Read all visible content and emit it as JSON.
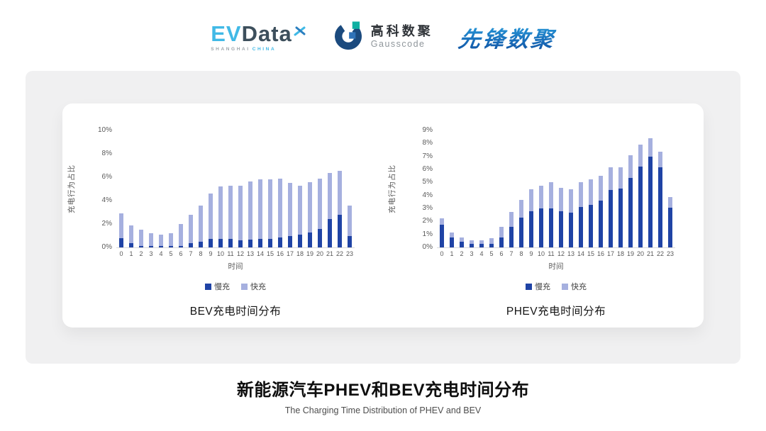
{
  "header": {
    "evdata": {
      "ev": "EV",
      "data": "Data",
      "sub_left": "SHANGHAI",
      "sub_right": "CHINA"
    },
    "gausscode": {
      "cn": "高科数聚",
      "en": "Gausscode"
    },
    "pioneer": {
      "text": "先锋数聚"
    }
  },
  "charts": [
    {
      "title": "BEV充电时间分布",
      "ylabel": "充电行为占比",
      "xlabel": "时间",
      "legend": [
        "慢充",
        "快充"
      ]
    },
    {
      "title": "PHEV充电时间分布",
      "ylabel": "充电行为占比",
      "xlabel": "时间",
      "legend": [
        "慢充",
        "快充"
      ]
    }
  ],
  "footer": {
    "title": "新能源汽车PHEV和BEV充电时间分布",
    "subtitle": "The Charging Time Distribution of PHEV and BEV"
  },
  "colors": {
    "slow": "#1F43A5",
    "fast": "#A6B0DF",
    "axis_text": "#595959",
    "baseline": "#D9D9D9",
    "brand_cyan": "#41B9E6",
    "brand_navy": "#3D4F5C",
    "pioneer_blue": "#1767B5"
  },
  "chart_data": [
    {
      "type": "bar",
      "stacked": true,
      "title": "BEV充电时间分布",
      "xlabel": "时间",
      "ylabel": "充电行为占比",
      "categories": [
        0,
        1,
        2,
        3,
        4,
        5,
        6,
        7,
        8,
        9,
        10,
        11,
        12,
        13,
        14,
        15,
        16,
        17,
        18,
        19,
        20,
        21,
        22,
        23
      ],
      "series": [
        {
          "name": "慢充",
          "values": [
            0.8,
            0.35,
            0.15,
            0.1,
            0.1,
            0.1,
            0.15,
            0.35,
            0.5,
            0.7,
            0.7,
            0.75,
            0.6,
            0.65,
            0.7,
            0.7,
            0.85,
            1.0,
            1.1,
            1.3,
            1.6,
            2.4,
            2.8,
            1.0
          ]
        },
        {
          "name": "快充",
          "values": [
            2.1,
            1.55,
            1.35,
            1.1,
            1.0,
            1.1,
            1.85,
            2.45,
            3.1,
            3.9,
            4.5,
            4.5,
            4.65,
            5.0,
            5.1,
            5.1,
            5.0,
            4.5,
            4.2,
            4.3,
            4.3,
            3.95,
            3.75,
            2.6
          ]
        }
      ],
      "ylim": [
        0,
        10
      ],
      "ytick_step": 2,
      "yticklabels": [
        "0%",
        "2%",
        "4%",
        "6%",
        "8%",
        "10%"
      ],
      "grid": false,
      "legend_position": "bottom"
    },
    {
      "type": "bar",
      "stacked": true,
      "title": "PHEV充电时间分布",
      "xlabel": "时间",
      "ylabel": "充电行为占比",
      "categories": [
        0,
        1,
        2,
        3,
        4,
        5,
        6,
        7,
        8,
        9,
        10,
        11,
        12,
        13,
        14,
        15,
        16,
        17,
        18,
        19,
        20,
        21,
        22,
        23
      ],
      "series": [
        {
          "name": "慢充",
          "values": [
            1.75,
            0.75,
            0.45,
            0.25,
            0.25,
            0.3,
            0.75,
            1.6,
            2.3,
            2.8,
            3.0,
            3.0,
            2.8,
            2.65,
            3.1,
            3.3,
            3.6,
            4.4,
            4.55,
            5.35,
            6.2,
            7.0,
            6.15,
            3.05
          ]
        },
        {
          "name": "快充",
          "values": [
            0.5,
            0.4,
            0.3,
            0.3,
            0.3,
            0.4,
            0.85,
            1.15,
            1.35,
            1.7,
            1.75,
            2.0,
            1.8,
            1.85,
            1.9,
            1.95,
            1.9,
            1.75,
            1.6,
            1.75,
            1.7,
            1.4,
            1.2,
            0.8
          ]
        }
      ],
      "ylim": [
        0,
        9
      ],
      "ytick_step": 1,
      "yticklabels": [
        "0%",
        "1%",
        "2%",
        "3%",
        "4%",
        "5%",
        "6%",
        "7%",
        "8%",
        "9%"
      ],
      "grid": false,
      "legend_position": "bottom"
    }
  ]
}
